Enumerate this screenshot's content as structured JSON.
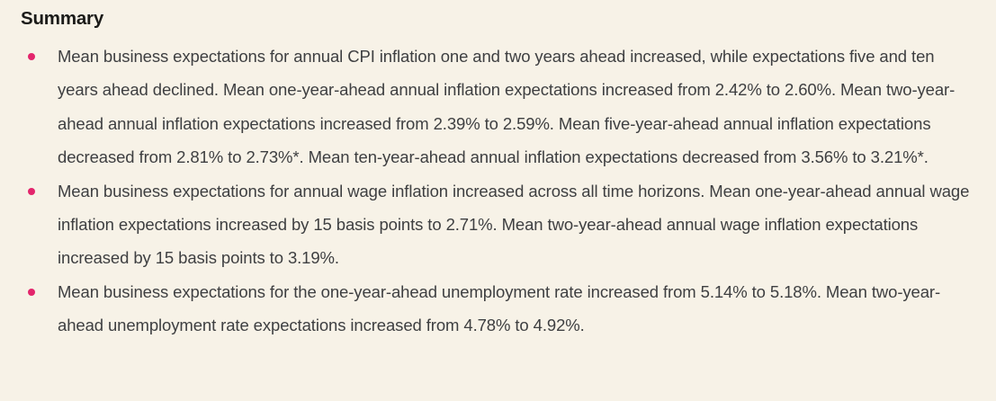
{
  "section": {
    "heading": "Summary",
    "bullets": [
      {
        "text": "Mean business expectations for annual CPI inflation one and two years ahead increased, while expectations five and ten years ahead declined. Mean one-year-ahead annual inflation expectations increased from 2.42% to 2.60%. Mean two-year-ahead annual inflation expectations increased from 2.39% to 2.59%. Mean five-year-ahead annual inflation expectations decreased from 2.81% to 2.73%*. Mean ten-year-ahead annual inflation expectations decreased from 3.56% to 3.21%*."
      },
      {
        "text": "Mean business expectations for annual wage inflation increased across all time horizons. Mean one-year-ahead annual wage inflation expectations increased by 15 basis points to 2.71%. Mean two-year-ahead annual wage inflation expectations increased by 15 basis points to 3.19%."
      },
      {
        "text": "Mean business expectations for the one-year-ahead unemployment rate increased from 5.14% to 5.18%. Mean two-year-ahead unemployment rate expectations increased from 4.78% to 4.92%."
      }
    ]
  },
  "colors": {
    "background": "#f7f2e7",
    "bullet": "#e3256c",
    "heading_text": "#1b1b19",
    "body_text": "#3e3f41"
  }
}
